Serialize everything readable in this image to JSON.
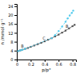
{
  "chart_data": {
    "type": "line",
    "title": "",
    "xlabel": "p/p°",
    "ylabel": "n /mmol g⁻¹",
    "xlim": [
      0,
      0.85
    ],
    "ylim": [
      0,
      25
    ],
    "xticks": [
      0,
      0.2,
      0.4,
      0.6,
      0.8
    ],
    "yticks": [
      0,
      4,
      8,
      12,
      16,
      20,
      24
    ],
    "series": [
      {
        "color": "#555555",
        "marker": "square",
        "line_style": "solid",
        "x": [
          0.02,
          0.05,
          0.08,
          0.12,
          0.16,
          0.2,
          0.25,
          0.3,
          0.35,
          0.4,
          0.45,
          0.5,
          0.55,
          0.6,
          0.65,
          0.7,
          0.75,
          0.8,
          0.83
        ],
        "values": [
          3.8,
          4.1,
          4.4,
          4.8,
          5.2,
          5.7,
          6.3,
          6.9,
          7.5,
          8.2,
          8.9,
          9.6,
          10.4,
          11.2,
          12.1,
          13.0,
          14.0,
          15.0,
          15.6
        ]
      },
      {
        "color": "#55ccee",
        "marker": "circle",
        "line_style": "dashed",
        "x": [
          0.02,
          0.05,
          0.08,
          0.12,
          0.5,
          0.55,
          0.6,
          0.65,
          0.7,
          0.73,
          0.76,
          0.79,
          0.81
        ],
        "values": [
          3.8,
          4.1,
          4.4,
          4.8,
          9.6,
          11.0,
          12.8,
          14.8,
          17.0,
          18.5,
          19.8,
          21.0,
          22.0
        ]
      }
    ],
    "annotations": [
      {
        "text": "B",
        "x": 0.06,
        "y": 5.5
      },
      {
        "text": "C",
        "x": 0.37,
        "y": 8.8
      },
      {
        "text": "B",
        "x": 0.7,
        "y": 14.2
      }
    ]
  }
}
